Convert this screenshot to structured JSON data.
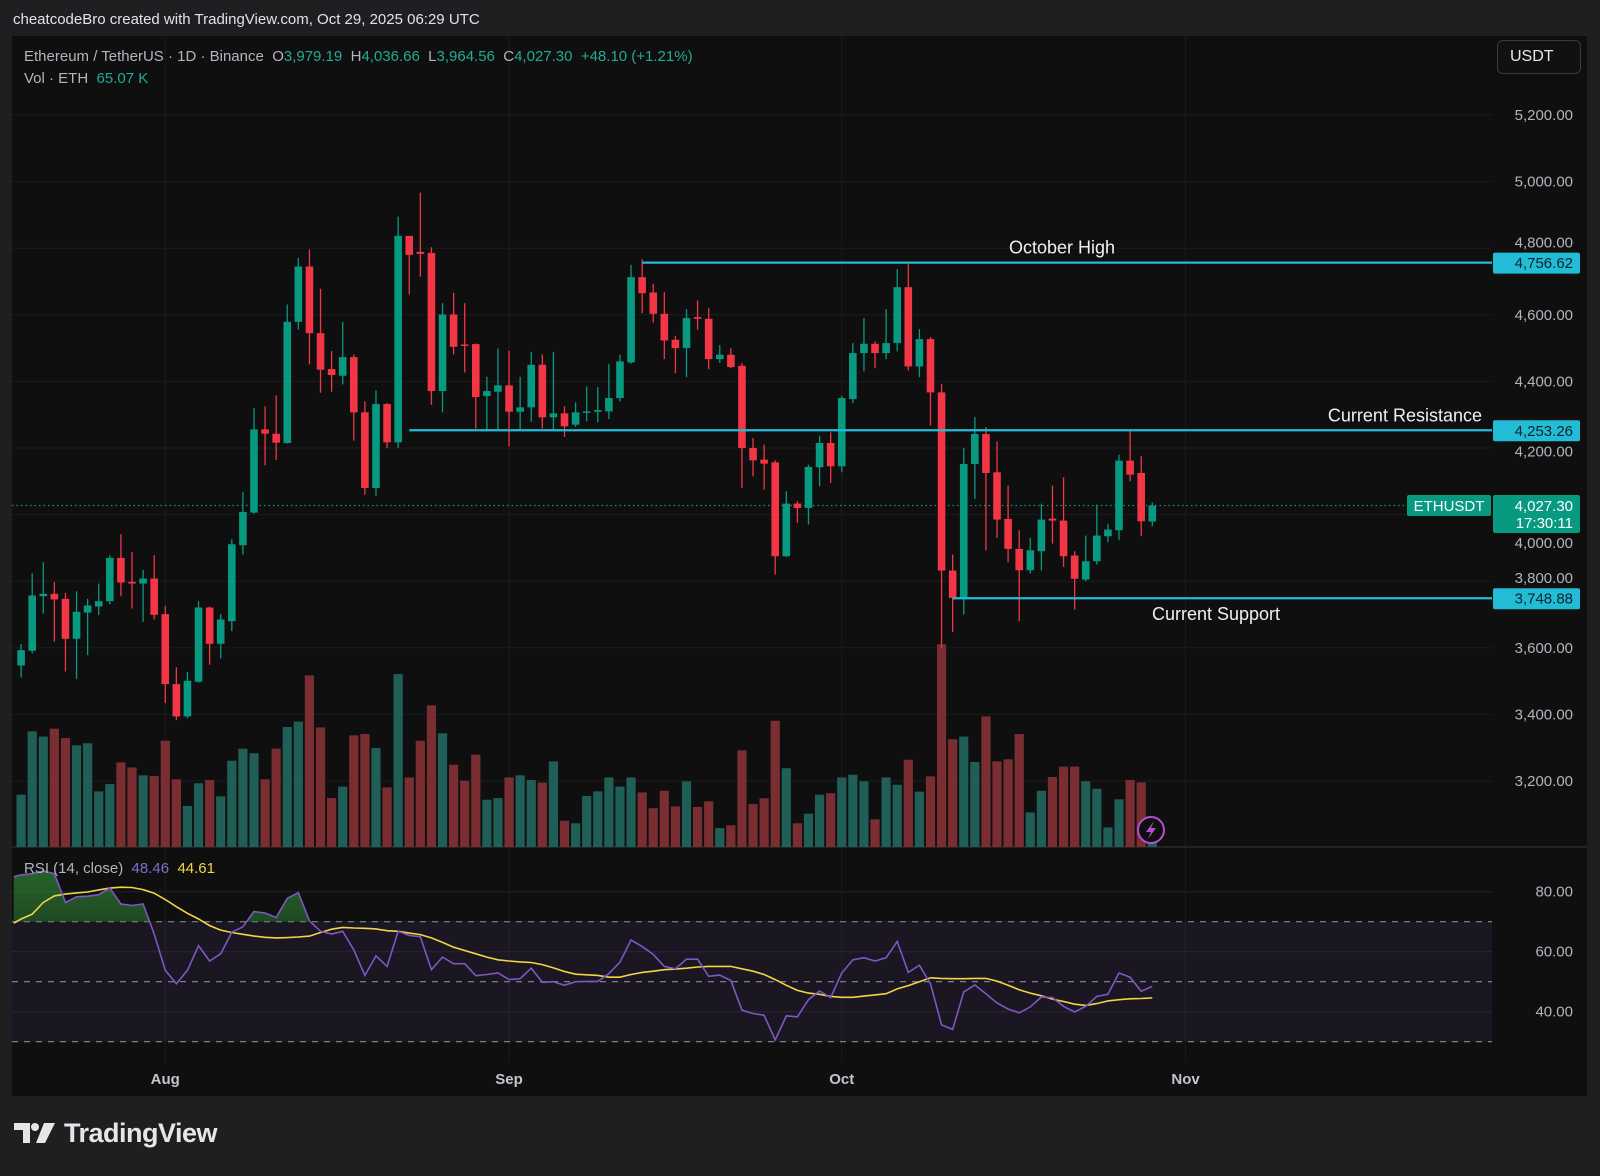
{
  "header": {
    "credit": "cheatcodeBro created with TradingView.com, Oct 29, 2025 06:29 UTC"
  },
  "legend": {
    "symbol": "Ethereum / TetherUS · 1D · Binance",
    "o_label": "O",
    "o": "3,979.19",
    "h_label": "H",
    "h": "4,036.66",
    "l_label": "L",
    "l": "3,964.56",
    "c_label": "C",
    "c": "4,027.30",
    "change": "+48.10 (+1.21%)",
    "vol_label": "Vol · ETH",
    "vol": "65.07 K"
  },
  "currency_button": "USDT",
  "rsi_legend": {
    "label": "RSI (14, close)",
    "rsi": "48.46",
    "ma": "44.61"
  },
  "current_price": {
    "symbol": "ETHUSDT",
    "price": "4,027.30",
    "countdown": "17:30:11",
    "value": 4027.3
  },
  "levels": [
    {
      "name": "October High",
      "value": 4756.62,
      "tag": "4,756.62",
      "start_date": "2025-09-13"
    },
    {
      "name": "Current Resistance",
      "value": 4253.26,
      "tag": "4,253.26",
      "start_date": "2025-08-23"
    },
    {
      "name": "Current Support",
      "value": 3748.88,
      "tag": "3,748.88",
      "start_date": "2025-10-11"
    }
  ],
  "colors": {
    "up": "#089981",
    "down": "#f23645",
    "vol_up": "#1f5f57",
    "vol_down": "#7a2e31",
    "level": "#22bcd6",
    "rsi": "#7e57c2",
    "rsi_ma": "#f2d544",
    "alert": "#b44fd3"
  },
  "icons": {
    "alert": "lightning-bolt-icon",
    "logo": "tradingview-logo-icon"
  },
  "watermark": "TradingView",
  "chart_data": [
    {
      "type": "candlestick",
      "title": "Ethereum / TetherUS · 1D · Binance",
      "ylim": [
        3000,
        5400
      ],
      "y_ticks": [
        "5,200.00",
        "5,000.00",
        "4,800.00",
        "4,600.00",
        "4,400.00",
        "4,200.00",
        "4,000.00",
        "3,800.00",
        "3,600.00",
        "3,400.00",
        "3,200.00"
      ],
      "y_tick_values": [
        5200,
        5000,
        4800,
        4600,
        4400,
        4200,
        4000,
        3800,
        3600,
        3400,
        3200
      ],
      "x_ticks": [
        {
          "label": "Aug",
          "date": "2025-08-01"
        },
        {
          "label": "Sep",
          "date": "2025-09-01"
        },
        {
          "label": "Oct",
          "date": "2025-10-01"
        },
        {
          "label": "Nov",
          "date": "2025-11-01"
        }
      ],
      "grid": true,
      "columns": [
        "date",
        "open",
        "high",
        "low",
        "close",
        "volume_k"
      ],
      "candles": [
        [
          "2025-07-19",
          3547,
          3611,
          3511,
          3593,
          251
        ],
        [
          "2025-07-20",
          3591,
          3824,
          3583,
          3757,
          555
        ],
        [
          "2025-07-21",
          3755,
          3857,
          3703,
          3762,
          530
        ],
        [
          "2025-07-22",
          3762,
          3798,
          3619,
          3745,
          568
        ],
        [
          "2025-07-23",
          3747,
          3765,
          3529,
          3627,
          523
        ],
        [
          "2025-07-24",
          3627,
          3770,
          3506,
          3708,
          488
        ],
        [
          "2025-07-25",
          3706,
          3747,
          3578,
          3727,
          498
        ],
        [
          "2025-07-26",
          3724,
          3793,
          3699,
          3740,
          267
        ],
        [
          "2025-07-27",
          3740,
          3878,
          3731,
          3870,
          302
        ],
        [
          "2025-07-28",
          3870,
          3941,
          3755,
          3796,
          406
        ],
        [
          "2025-07-29",
          3798,
          3887,
          3718,
          3793,
          382
        ],
        [
          "2025-07-30",
          3793,
          3834,
          3678,
          3808,
          344
        ],
        [
          "2025-07-31",
          3808,
          3878,
          3685,
          3699,
          341
        ],
        [
          "2025-08-01",
          3701,
          3726,
          3434,
          3491,
          510
        ],
        [
          "2025-08-02",
          3491,
          3542,
          3383,
          3394,
          325
        ],
        [
          "2025-08-03",
          3394,
          3527,
          3388,
          3501,
          197
        ],
        [
          "2025-08-04",
          3498,
          3740,
          3496,
          3721,
          306
        ],
        [
          "2025-08-05",
          3721,
          3724,
          3549,
          3612,
          322
        ],
        [
          "2025-08-06",
          3612,
          3701,
          3568,
          3685,
          243
        ],
        [
          "2025-08-07",
          3680,
          3926,
          3650,
          3911,
          414
        ],
        [
          "2025-08-08",
          3908,
          4067,
          3880,
          4008,
          472
        ],
        [
          "2025-08-09",
          4006,
          4320,
          4003,
          4256,
          450
        ],
        [
          "2025-08-10",
          4256,
          4325,
          4148,
          4243,
          325
        ],
        [
          "2025-08-11",
          4243,
          4358,
          4164,
          4216,
          472
        ],
        [
          "2025-08-12",
          4215,
          4631,
          4213,
          4579,
          576
        ],
        [
          "2025-08-13",
          4579,
          4771,
          4556,
          4745,
          602
        ],
        [
          "2025-08-14",
          4745,
          4796,
          4451,
          4545,
          824
        ],
        [
          "2025-08-15",
          4545,
          4678,
          4366,
          4435,
          574
        ],
        [
          "2025-08-16",
          4437,
          4491,
          4369,
          4419,
          235
        ],
        [
          "2025-08-17",
          4417,
          4578,
          4391,
          4473,
          290
        ],
        [
          "2025-08-18",
          4473,
          4481,
          4222,
          4307,
          536
        ],
        [
          "2025-08-19",
          4307,
          4340,
          4060,
          4080,
          542
        ],
        [
          "2025-08-20",
          4080,
          4373,
          4057,
          4332,
          475
        ],
        [
          "2025-08-21",
          4332,
          4335,
          4200,
          4217,
          286
        ],
        [
          "2025-08-22",
          4217,
          4895,
          4200,
          4837,
          830
        ],
        [
          "2025-08-23",
          4837,
          4837,
          4661,
          4780,
          334
        ],
        [
          "2025-08-24",
          4789,
          4967,
          4714,
          4783,
          510
        ],
        [
          "2025-08-25",
          4786,
          4803,
          4330,
          4371,
          680
        ],
        [
          "2025-08-26",
          4371,
          4635,
          4307,
          4601,
          546
        ],
        [
          "2025-08-27",
          4601,
          4666,
          4481,
          4504,
          395
        ],
        [
          "2025-08-28",
          4511,
          4635,
          4427,
          4507,
          318
        ],
        [
          "2025-08-29",
          4512,
          4514,
          4258,
          4353,
          443
        ],
        [
          "2025-08-30",
          4356,
          4414,
          4250,
          4371,
          227
        ],
        [
          "2025-08-31",
          4369,
          4499,
          4253,
          4388,
          235
        ],
        [
          "2025-09-01",
          4388,
          4492,
          4205,
          4309,
          334
        ],
        [
          "2025-09-02",
          4309,
          4414,
          4256,
          4322,
          344
        ],
        [
          "2025-09-03",
          4322,
          4489,
          4279,
          4450,
          322
        ],
        [
          "2025-09-04",
          4450,
          4481,
          4258,
          4292,
          309
        ],
        [
          "2025-09-05",
          4292,
          4489,
          4250,
          4304,
          411
        ],
        [
          "2025-09-06",
          4304,
          4325,
          4233,
          4265,
          126
        ],
        [
          "2025-09-07",
          4270,
          4337,
          4263,
          4307,
          114
        ],
        [
          "2025-09-08",
          4307,
          4385,
          4280,
          4310,
          245
        ],
        [
          "2025-09-09",
          4309,
          4383,
          4277,
          4314,
          267
        ],
        [
          "2025-09-10",
          4310,
          4453,
          4287,
          4350,
          334
        ],
        [
          "2025-09-11",
          4350,
          4480,
          4340,
          4460,
          290
        ],
        [
          "2025-09-12",
          4457,
          4750,
          4453,
          4713,
          334
        ],
        [
          "2025-09-13",
          4713,
          4767,
          4605,
          4665,
          262
        ],
        [
          "2025-09-14",
          4667,
          4693,
          4577,
          4603,
          186
        ],
        [
          "2025-09-15",
          4603,
          4668,
          4467,
          4523,
          270
        ],
        [
          "2025-09-16",
          4525,
          4537,
          4425,
          4500,
          195
        ],
        [
          "2025-09-17",
          4500,
          4617,
          4413,
          4590,
          315
        ],
        [
          "2025-09-18",
          4593,
          4643,
          4555,
          4588,
          192
        ],
        [
          "2025-09-19",
          4588,
          4620,
          4437,
          4467,
          219
        ],
        [
          "2025-09-20",
          4467,
          4509,
          4455,
          4480,
          91
        ],
        [
          "2025-09-21",
          4480,
          4500,
          4440,
          4443,
          104
        ],
        [
          "2025-09-22",
          4447,
          4455,
          4080,
          4200,
          464
        ],
        [
          "2025-09-23",
          4200,
          4230,
          4115,
          4163,
          206
        ],
        [
          "2025-09-24",
          4165,
          4210,
          4075,
          4153,
          234
        ],
        [
          "2025-09-25",
          4157,
          4163,
          3820,
          3875,
          606
        ],
        [
          "2025-09-26",
          3875,
          4070,
          3873,
          4033,
          378
        ],
        [
          "2025-09-27",
          4033,
          4040,
          3975,
          4020,
          114
        ],
        [
          "2025-09-28",
          4020,
          4150,
          3970,
          4143,
          160
        ],
        [
          "2025-09-29",
          4142,
          4237,
          4085,
          4215,
          251
        ],
        [
          "2025-09-30",
          4215,
          4247,
          4095,
          4145,
          258
        ],
        [
          "2025-10-01",
          4145,
          4357,
          4127,
          4350,
          334
        ],
        [
          "2025-10-02",
          4347,
          4515,
          4335,
          4485,
          347
        ],
        [
          "2025-10-03",
          4485,
          4590,
          4430,
          4513,
          315
        ],
        [
          "2025-10-04",
          4513,
          4520,
          4440,
          4485,
          133
        ],
        [
          "2025-10-05",
          4485,
          4617,
          4467,
          4515,
          334
        ],
        [
          "2025-10-06",
          4515,
          4737,
          4490,
          4683,
          299
        ],
        [
          "2025-10-07",
          4683,
          4753,
          4433,
          4445,
          419
        ],
        [
          "2025-10-08",
          4445,
          4557,
          4413,
          4527,
          266
        ],
        [
          "2025-10-09",
          4527,
          4533,
          4267,
          4367,
          339
        ],
        [
          "2025-10-10",
          4367,
          4393,
          3600,
          3832,
          973
        ],
        [
          "2025-10-11",
          3832,
          3880,
          3647,
          3750,
          517
        ],
        [
          "2025-10-12",
          3750,
          4200,
          3700,
          4152,
          530
        ],
        [
          "2025-10-13",
          4152,
          4293,
          4047,
          4242,
          408
        ],
        [
          "2025-10-14",
          4242,
          4263,
          3893,
          4125,
          627
        ],
        [
          "2025-10-15",
          4127,
          4220,
          3930,
          3985,
          411
        ],
        [
          "2025-10-16",
          3987,
          4087,
          3857,
          3897,
          421
        ],
        [
          "2025-10-17",
          3897,
          3953,
          3680,
          3833,
          542
        ],
        [
          "2025-10-18",
          3833,
          3930,
          3823,
          3893,
          166
        ],
        [
          "2025-10-19",
          3890,
          4033,
          3832,
          3985,
          270
        ],
        [
          "2025-10-20",
          3988,
          4087,
          3913,
          3982,
          336
        ],
        [
          "2025-10-21",
          3982,
          4112,
          3843,
          3875,
          386
        ],
        [
          "2025-10-22",
          3877,
          3890,
          3715,
          3807,
          386
        ],
        [
          "2025-10-23",
          3805,
          3937,
          3800,
          3860,
          315
        ],
        [
          "2025-10-24",
          3860,
          4030,
          3850,
          3937,
          280
        ],
        [
          "2025-10-25",
          3935,
          3972,
          3917,
          3955,
          94
        ],
        [
          "2025-10-26",
          3953,
          4180,
          3923,
          4162,
          229
        ],
        [
          "2025-10-27",
          4162,
          4255,
          4100,
          4120,
          322
        ],
        [
          "2025-10-28",
          4125,
          4175,
          3935,
          3980,
          310
        ],
        [
          "2025-10-29",
          3979.19,
          4036.66,
          3964.56,
          4027.3,
          65.07
        ]
      ]
    },
    {
      "type": "line",
      "title": "RSI (14, close)",
      "ylim": [
        20,
        90
      ],
      "y_ticks": [
        "80.00",
        "60.00",
        "40.00"
      ],
      "y_tick_values": [
        80,
        60,
        40
      ],
      "bands": [
        70,
        50,
        30
      ],
      "series": [
        {
          "name": "RSI",
          "values": [
            85.6,
            86,
            86.9,
            86,
            76.4,
            78.3,
            78.5,
            79,
            81.2,
            75.9,
            75.4,
            75.9,
            65.9,
            53.8,
            49.3,
            53.8,
            62,
            56.9,
            59.3,
            66.5,
            68.3,
            73.4,
            72.9,
            71.4,
            77.8,
            79.7,
            70.3,
            66.8,
            65.9,
            66.8,
            60.6,
            52.1,
            58.6,
            55.1,
            66.8,
            65.4,
            65,
            54,
            58.2,
            56,
            56,
            52,
            52.4,
            52.9,
            50.7,
            51,
            54.5,
            49.8,
            50,
            48.8,
            50,
            50.1,
            50.1,
            52.7,
            56.5,
            63.9,
            61.7,
            59.1,
            55.1,
            54.3,
            57.5,
            57.5,
            51.8,
            52.2,
            50.4,
            40.5,
            39.4,
            38.8,
            30.6,
            38.6,
            38.3,
            44,
            46.9,
            44.7,
            52.9,
            57.3,
            58,
            56.9,
            58,
            63.4,
            53.1,
            55.5,
            49.3,
            35.6,
            34.1,
            46.6,
            48.9,
            46,
            42.9,
            40.9,
            39.6,
            41.6,
            44.9,
            44.7,
            41.8,
            39.9,
            41.8,
            45.1,
            45.8,
            52.9,
            51.5,
            46.8,
            48.46
          ]
        },
        {
          "name": "RSI-based MA",
          "values": [
            70.9,
            72.5,
            76.4,
            78.6,
            79.2,
            79.6,
            79.9,
            80.6,
            81.2,
            81.5,
            81.4,
            80.7,
            79.5,
            77.4,
            75,
            72.8,
            70.9,
            68.7,
            67.2,
            66.4,
            65.8,
            65.2,
            64.8,
            64.6,
            64.7,
            64.9,
            65.2,
            66.4,
            67.5,
            68.1,
            67.9,
            67.8,
            67.6,
            67,
            66.8,
            66.2,
            65.7,
            64.6,
            63.1,
            61.5,
            60.4,
            59.3,
            58.2,
            57.3,
            56.9,
            56.6,
            56.4,
            55.7,
            54.6,
            53.4,
            52.5,
            52.3,
            52.1,
            51.5,
            51.5,
            52.4,
            53.1,
            53.5,
            54,
            54.2,
            54.5,
            54.9,
            55.1,
            55.1,
            55.1,
            54.3,
            53.5,
            52.4,
            50.7,
            48.8,
            47.1,
            46.2,
            45.8,
            45.1,
            44.8,
            44.8,
            45.2,
            45.6,
            46,
            47.6,
            48.7,
            50,
            51.3,
            51.1,
            51,
            51,
            51.1,
            51.1,
            50.2,
            48.8,
            47.3,
            46.2,
            45.3,
            44.2,
            43.4,
            42.5,
            42.1,
            42.7,
            43.6,
            44,
            44.3,
            44.4,
            44.61
          ]
        }
      ]
    }
  ]
}
